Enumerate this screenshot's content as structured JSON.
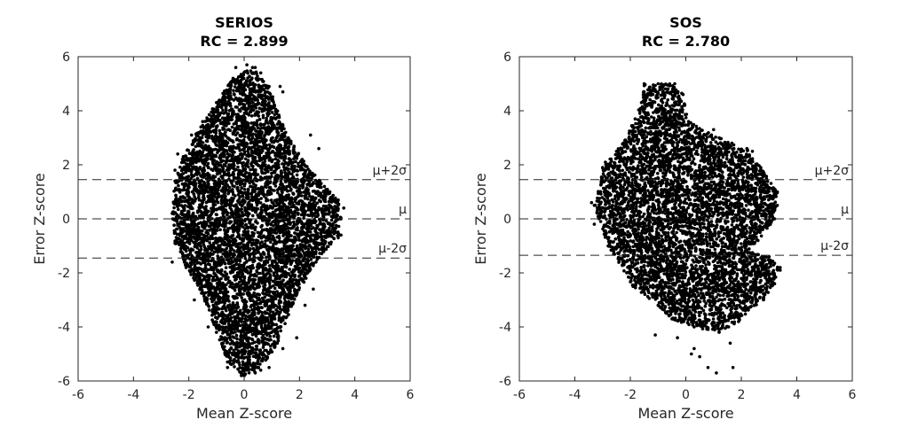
{
  "chart_data": [
    {
      "type": "scatter",
      "title": [
        "SERIOS",
        "RC = 2.899"
      ],
      "xlabel": "Mean Z-score",
      "ylabel": "Error Z-score",
      "xlim": [
        -6,
        6
      ],
      "ylim": [
        -6,
        6
      ],
      "xticks": [
        -6,
        -4,
        -2,
        0,
        2,
        4,
        6
      ],
      "yticks": [
        -6,
        -4,
        -2,
        0,
        2,
        4,
        6
      ],
      "grid": false,
      "marker_color": "#000000",
      "reference_lines": [
        {
          "label": "μ+2σ",
          "y": 1.45,
          "style": "dashed"
        },
        {
          "label": "μ",
          "y": 0.0,
          "style": "dashed"
        },
        {
          "label": "μ-2σ",
          "y": -1.45,
          "style": "dashed"
        }
      ],
      "point_cloud": {
        "description_polygon": [
          [
            0.3,
            5.6
          ],
          [
            0.9,
            4.9
          ],
          [
            1.5,
            3.2
          ],
          [
            2.1,
            2.2
          ],
          [
            2.9,
            1.2
          ],
          [
            3.4,
            0.7
          ],
          [
            3.5,
            0.0
          ],
          [
            3.4,
            -0.7
          ],
          [
            2.6,
            -1.6
          ],
          [
            1.9,
            -2.8
          ],
          [
            1.2,
            -4.6
          ],
          [
            0.6,
            -5.6
          ],
          [
            0.0,
            -5.8
          ],
          [
            -0.6,
            -5.3
          ],
          [
            -1.0,
            -4.2
          ],
          [
            -1.6,
            -2.6
          ],
          [
            -2.1,
            -1.8
          ],
          [
            -2.5,
            -0.9
          ],
          [
            -2.6,
            0.2
          ],
          [
            -2.5,
            1.4
          ],
          [
            -2.2,
            2.3
          ],
          [
            -1.5,
            3.6
          ],
          [
            -1.0,
            4.3
          ],
          [
            -0.4,
            5.2
          ]
        ],
        "n_points": 6000,
        "sparse_outliers": [
          [
            -2.6,
            -1.6
          ],
          [
            -2.5,
            1.8
          ],
          [
            -2.4,
            2.4
          ],
          [
            -1.9,
            3.1
          ],
          [
            -0.3,
            5.6
          ],
          [
            0.1,
            5.7
          ],
          [
            0.4,
            5.6
          ],
          [
            0.6,
            5.4
          ],
          [
            1.3,
            4.9
          ],
          [
            1.4,
            4.7
          ],
          [
            2.4,
            3.1
          ],
          [
            2.7,
            2.6
          ],
          [
            3.6,
            0.4
          ],
          [
            3.5,
            -0.6
          ],
          [
            2.5,
            -2.6
          ],
          [
            2.2,
            -3.2
          ],
          [
            1.9,
            -4.4
          ],
          [
            1.4,
            -4.8
          ],
          [
            0.9,
            -5.5
          ],
          [
            0.4,
            -5.7
          ],
          [
            -0.1,
            -5.8
          ],
          [
            -0.6,
            -5.5
          ],
          [
            -1.3,
            -4.0
          ],
          [
            -1.8,
            -3.0
          ]
        ]
      }
    },
    {
      "type": "scatter",
      "title": [
        "SOS",
        "RC = 2.780"
      ],
      "xlabel": "Mean Z-score",
      "ylabel": "Error Z-score",
      "xlim": [
        -6,
        6
      ],
      "ylim": [
        -6,
        6
      ],
      "xticks": [
        -6,
        -4,
        -2,
        0,
        2,
        4,
        6
      ],
      "yticks": [
        -6,
        -4,
        -2,
        0,
        2,
        4,
        6
      ],
      "grid": false,
      "marker_color": "#000000",
      "reference_lines": [
        {
          "label": "μ+2σ",
          "y": 1.45,
          "style": "dashed"
        },
        {
          "label": "μ",
          "y": 0.0,
          "style": "dashed"
        },
        {
          "label": "μ-2σ",
          "y": -1.35,
          "style": "dashed"
        }
      ],
      "point_cloud": {
        "description_polygon": [
          [
            -1.6,
            4.3
          ],
          [
            -1.5,
            5.0
          ],
          [
            -1.0,
            5.0
          ],
          [
            -0.4,
            5.0
          ],
          [
            -0.1,
            4.6
          ],
          [
            0.1,
            3.6
          ],
          [
            1.2,
            3.0
          ],
          [
            2.2,
            2.6
          ],
          [
            2.7,
            1.9
          ],
          [
            3.3,
            1.0
          ],
          [
            3.2,
            0.0
          ],
          [
            2.6,
            -0.8
          ],
          [
            2.2,
            -1.2
          ],
          [
            3.0,
            -1.4
          ],
          [
            3.4,
            -1.8
          ],
          [
            3.2,
            -2.4
          ],
          [
            2.8,
            -3.0
          ],
          [
            1.9,
            -3.8
          ],
          [
            1.2,
            -4.2
          ],
          [
            0.3,
            -4.0
          ],
          [
            -0.5,
            -3.7
          ],
          [
            -1.0,
            -3.2
          ],
          [
            -1.9,
            -2.5
          ],
          [
            -2.8,
            -1.0
          ],
          [
            -3.3,
            0.5
          ],
          [
            -3.0,
            1.9
          ],
          [
            -2.2,
            2.9
          ]
        ],
        "n_points": 5500,
        "sparse_outliers": [
          [
            -1.1,
            -4.3
          ],
          [
            0.3,
            -4.8
          ],
          [
            0.5,
            -5.1
          ],
          [
            0.8,
            -5.5
          ],
          [
            1.1,
            -5.7
          ],
          [
            1.7,
            -5.5
          ],
          [
            0.2,
            -5.0
          ],
          [
            1.6,
            -4.6
          ],
          [
            -0.3,
            -4.4
          ],
          [
            -3.4,
            0.6
          ],
          [
            -3.3,
            -0.2
          ],
          [
            3.4,
            -1.9
          ],
          [
            3.3,
            0.5
          ],
          [
            -2.9,
            2.1
          ],
          [
            1.0,
            3.3
          ],
          [
            2.4,
            2.5
          ]
        ]
      }
    }
  ]
}
